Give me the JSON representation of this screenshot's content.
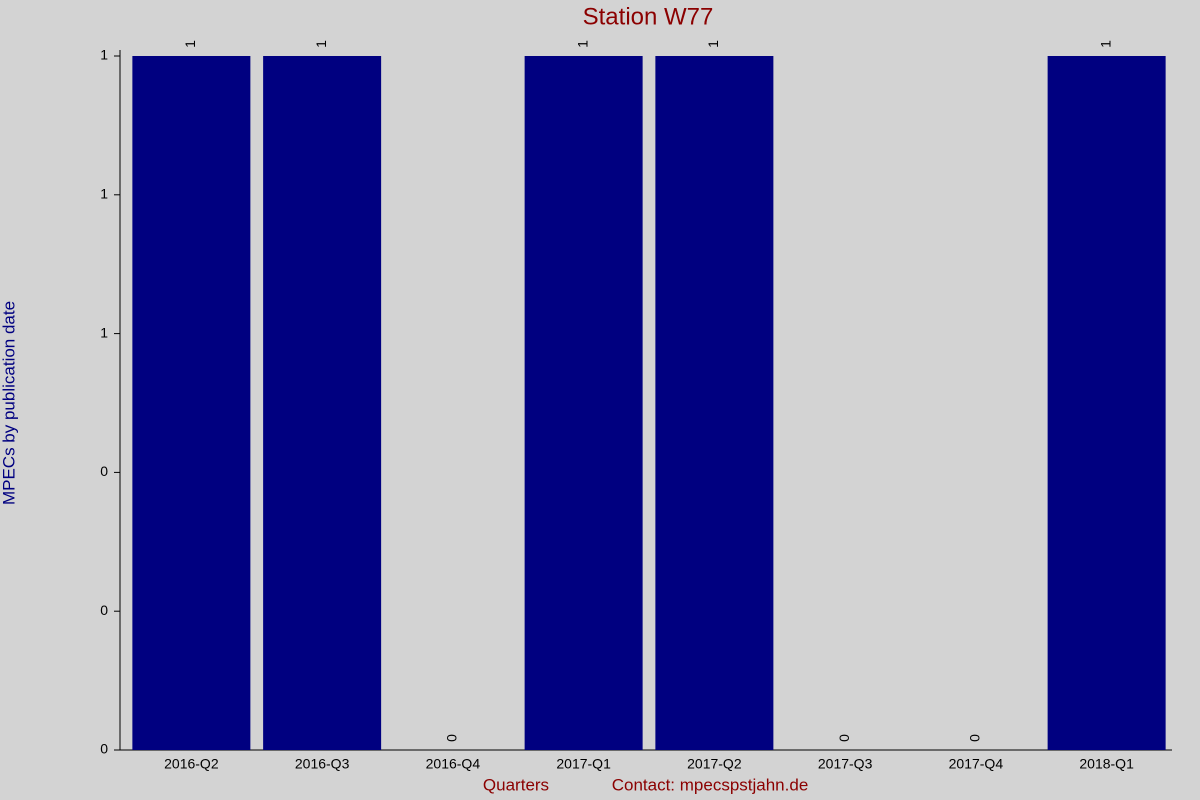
{
  "chart_data": {
    "type": "bar",
    "title": "Station W77",
    "y_label": "MPECs by publication date",
    "x_label": "Quarters",
    "footer": "Contact: mpecspstjahn.de",
    "categories": [
      "2016-Q2",
      "2016-Q3",
      "2016-Q4",
      "2017-Q1",
      "2017-Q2",
      "2017-Q3",
      "2017-Q4",
      "2018-Q1"
    ],
    "values": [
      1,
      1,
      0,
      1,
      1,
      0,
      0,
      1
    ],
    "color": "#000080",
    "ylim": [
      0,
      1
    ],
    "yticks": [
      0,
      {
        "value": 0.2,
        "label": "0"
      },
      {
        "value": 0.4,
        "label": "0"
      },
      {
        "value": 0.6,
        "label": "1"
      },
      {
        "value": 0.8,
        "label": "1"
      },
      1
    ],
    "grid": false
  }
}
